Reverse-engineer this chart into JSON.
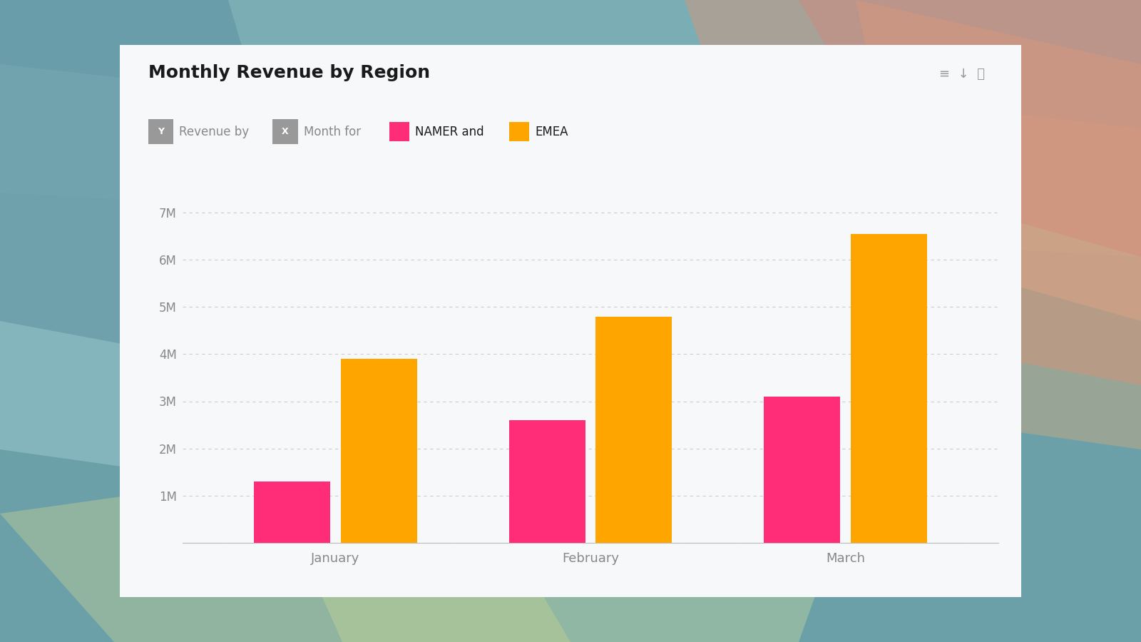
{
  "title": "Monthly Revenue by Region",
  "namer_color": "#FF2D78",
  "emea_color": "#FFA500",
  "months": [
    "January",
    "February",
    "March"
  ],
  "namer_values": [
    1300000,
    2600000,
    3100000
  ],
  "emea_values": [
    3900000,
    4800000,
    6550000
  ],
  "ylim": [
    0,
    7500000
  ],
  "yticks": [
    0,
    1000000,
    2000000,
    3000000,
    4000000,
    5000000,
    6000000,
    7000000
  ],
  "ytick_labels": [
    "",
    "1M",
    "2M",
    "3M",
    "4M",
    "5M",
    "6M",
    "7M"
  ],
  "card_bg": "#F7F8FA",
  "title_fontsize": 18,
  "subtitle_fontsize": 12,
  "tick_fontsize": 12,
  "xlabel_fontsize": 13,
  "bar_width": 0.3,
  "bar_gap": 0.04,
  "grid_color": "#CCCCCC",
  "axis_color": "#BBBBBB",
  "text_color": "#1A1A1A",
  "tick_color": "#888888",
  "badge_color": "#999999"
}
